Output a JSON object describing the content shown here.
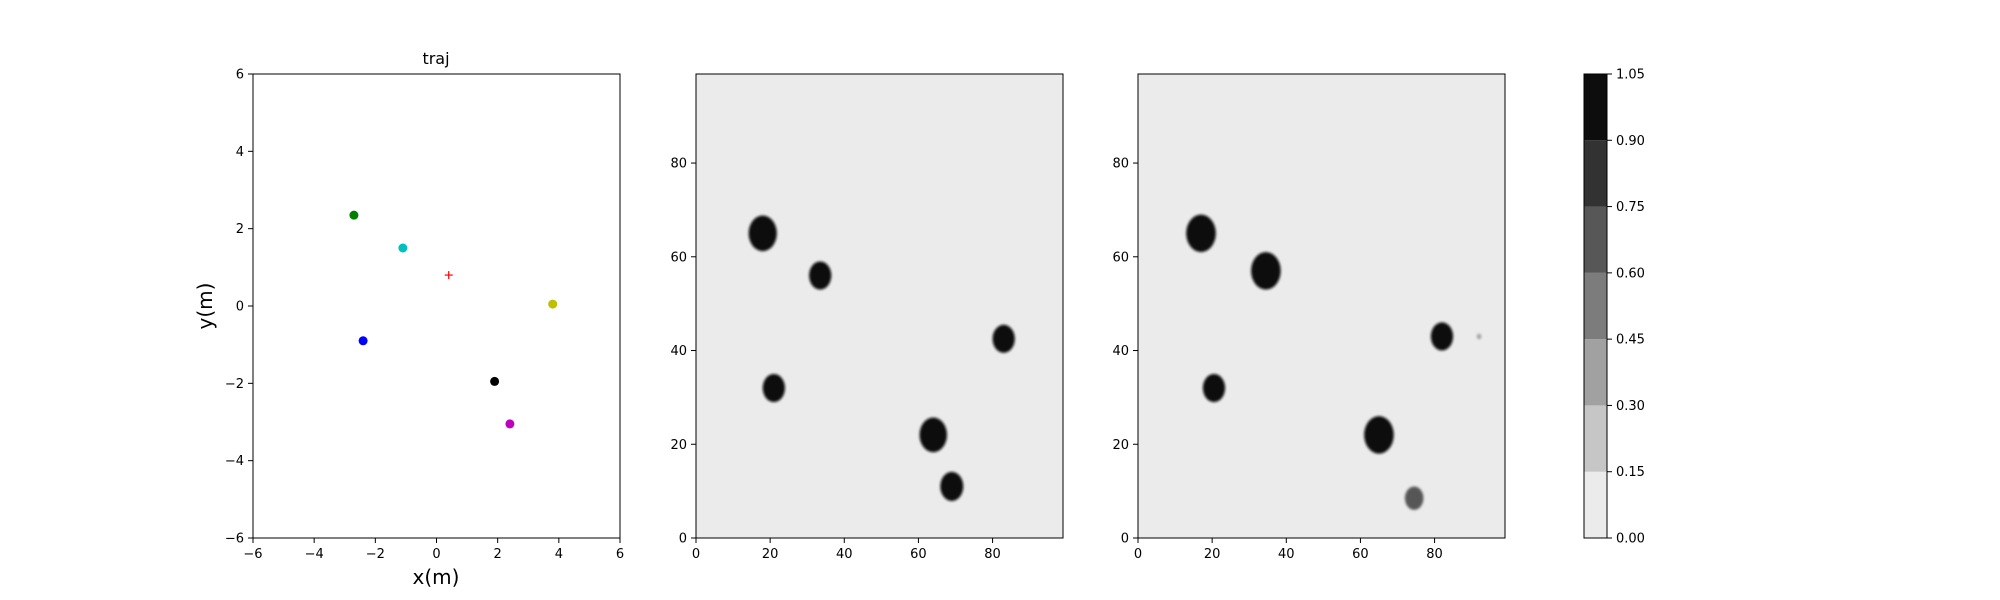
{
  "chart_data": [
    {
      "type": "scatter",
      "title": "traj",
      "xlabel": "x(m)",
      "ylabel": "y(m)",
      "xlim": [
        -6,
        6
      ],
      "ylim": [
        -6,
        6
      ],
      "xticks": [
        "−6",
        "−4",
        "−2",
        "0",
        "2",
        "4",
        "6"
      ],
      "yticks": [
        "−6",
        "−4",
        "−2",
        "0",
        "2",
        "4",
        "6"
      ],
      "grid": false,
      "points": [
        {
          "x": -2.7,
          "y": 2.35,
          "color": "#008000",
          "marker": "circle"
        },
        {
          "x": -1.1,
          "y": 1.5,
          "color": "#00bfbf",
          "marker": "circle"
        },
        {
          "x": 0.4,
          "y": 0.8,
          "color": "#ff0000",
          "marker": "plus"
        },
        {
          "x": 3.8,
          "y": 0.05,
          "color": "#bfbf00",
          "marker": "circle"
        },
        {
          "x": -2.4,
          "y": -0.9,
          "color": "#0000ff",
          "marker": "circle"
        },
        {
          "x": 1.9,
          "y": -1.95,
          "color": "#000000",
          "marker": "circle"
        },
        {
          "x": 2.4,
          "y": -3.05,
          "color": "#bf00bf",
          "marker": "circle"
        }
      ]
    },
    {
      "type": "heatmap",
      "xlim": [
        0,
        99
      ],
      "ylim": [
        0,
        99
      ],
      "xticks": [
        "0",
        "20",
        "40",
        "60",
        "80"
      ],
      "yticks": [
        "0",
        "20",
        "40",
        "60",
        "80"
      ],
      "background_value": 0.1,
      "blobs": [
        {
          "x": 18,
          "y": 65,
          "r": 3.8,
          "value": 1.0
        },
        {
          "x": 33.5,
          "y": 56,
          "r": 3.0,
          "value": 1.0
        },
        {
          "x": 21,
          "y": 32,
          "r": 3.0,
          "value": 1.0
        },
        {
          "x": 83,
          "y": 42.5,
          "r": 3.0,
          "value": 1.0
        },
        {
          "x": 64,
          "y": 22,
          "r": 3.7,
          "value": 1.0
        },
        {
          "x": 69,
          "y": 11,
          "r": 3.1,
          "value": 1.0
        }
      ]
    },
    {
      "type": "heatmap",
      "xlim": [
        0,
        99
      ],
      "ylim": [
        0,
        99
      ],
      "xticks": [
        "0",
        "20",
        "40",
        "60",
        "80"
      ],
      "yticks": [
        "0",
        "20",
        "40",
        "60",
        "80"
      ],
      "background_value": 0.1,
      "blobs": [
        {
          "x": 17,
          "y": 65,
          "r": 4.0,
          "value": 1.0
        },
        {
          "x": 34.5,
          "y": 57,
          "r": 4.0,
          "value": 1.0
        },
        {
          "x": 20.5,
          "y": 32,
          "r": 3.0,
          "value": 1.0
        },
        {
          "x": 82,
          "y": 43,
          "r": 3.0,
          "value": 1.0
        },
        {
          "x": 65,
          "y": 22,
          "r": 4.0,
          "value": 1.0
        },
        {
          "x": 74.5,
          "y": 8.5,
          "r": 2.5,
          "value": 0.65
        },
        {
          "x": 92,
          "y": 43,
          "r": 0.6,
          "value": 0.3
        }
      ]
    }
  ],
  "colorbar": {
    "levels": [
      0.0,
      0.15,
      0.3,
      0.45,
      0.6,
      0.75,
      0.9,
      1.05
    ],
    "tick_labels": [
      "0.00",
      "0.15",
      "0.30",
      "0.45",
      "0.60",
      "0.75",
      "0.90",
      "1.05"
    ],
    "colors": [
      "#ebebeb",
      "#c6c6c6",
      "#a1a1a1",
      "#7c7c7c",
      "#575757",
      "#323232",
      "#0d0d0d"
    ]
  }
}
